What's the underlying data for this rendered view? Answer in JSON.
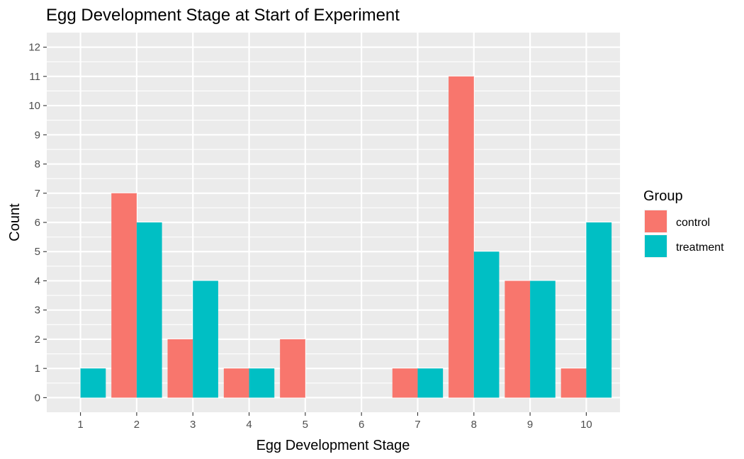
{
  "chart_data": {
    "type": "bar",
    "title": "Egg Development Stage at Start of Experiment",
    "xlabel": "Egg Development Stage",
    "ylabel": "Count",
    "categories": [
      "1",
      "2",
      "3",
      "4",
      "5",
      "6",
      "7",
      "8",
      "9",
      "10"
    ],
    "series": [
      {
        "name": "control",
        "color": "#f8766d",
        "values": [
          0,
          7,
          2,
          1,
          2,
          0,
          1,
          11,
          4,
          1
        ]
      },
      {
        "name": "treatment",
        "color": "#00bfc4",
        "values": [
          1,
          6,
          4,
          1,
          0,
          0,
          1,
          5,
          4,
          6
        ]
      }
    ],
    "ylim": [
      -0.5,
      12.5
    ],
    "yticks": [
      0,
      1,
      2,
      3,
      4,
      5,
      6,
      7,
      8,
      9,
      10,
      11,
      12
    ],
    "grid": true,
    "legend": {
      "title": "Group",
      "placement": "right"
    },
    "colors": {
      "panel_background": "#ebebeb",
      "grid": "#ffffff",
      "tick_text": "#4d4d4d"
    }
  }
}
